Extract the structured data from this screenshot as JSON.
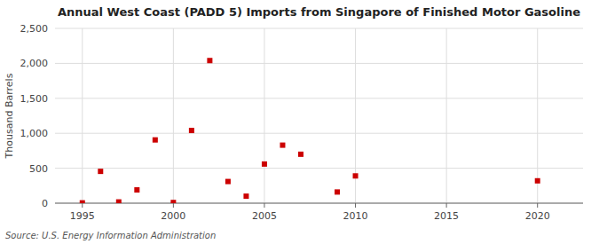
{
  "chart_data": {
    "type": "scatter",
    "title": "Annual West Coast (PADD 5) Imports from Singapore of Finished Motor Gasoline",
    "y_label": "Thousand Barrels",
    "annotations": [
      "Source: U.S. Energy Information Administration"
    ],
    "x": [
      1995,
      1996,
      1997,
      1998,
      1999,
      2000,
      2001,
      2002,
      2003,
      2004,
      2005,
      2006,
      2007,
      2009,
      2010,
      2020
    ],
    "values": [
      5,
      455,
      18,
      190,
      905,
      10,
      1040,
      2040,
      310,
      100,
      560,
      830,
      700,
      160,
      390,
      320
    ],
    "color": "#cc0000",
    "marker": "square",
    "xlim": [
      1993.5,
      2022.5
    ],
    "ylim": [
      0,
      2500
    ],
    "xticks": [
      1995,
      2000,
      2005,
      2010,
      2015,
      2020
    ],
    "yticks": [
      0,
      500,
      {
        "value": 1000,
        "label": "1,000"
      },
      {
        "value": 1500,
        "label": "1,500"
      },
      {
        "value": 2000,
        "label": "2,000"
      },
      {
        "value": 2500,
        "label": "2,500"
      }
    ],
    "grid": true
  }
}
